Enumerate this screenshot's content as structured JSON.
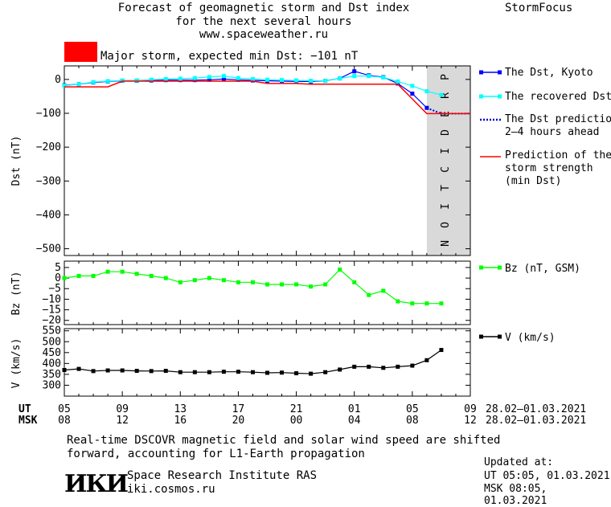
{
  "header": {
    "line1": "Forecast of geomagnetic storm and Dst index",
    "line2": "for the next several hours",
    "line3": "www.spaceweather.ru",
    "brand": "StormFocus"
  },
  "storm_banner": {
    "color": "#ff0000",
    "text": "Major storm, expected min Dst: −101 nT"
  },
  "prediction_label": "PREDICTION",
  "legend": {
    "dst_kyoto": "The Dst, Kyoto",
    "recovered": "The recovered Dst",
    "prediction_line1": "The Dst prediction",
    "prediction_line2": "2–4 hours ahead",
    "strength_line1": "Prediction of the",
    "strength_line2": "storm strength",
    "strength_line3": "(min Dst)",
    "bz": "Bz (nT, GSM)",
    "v": "V (km/s)"
  },
  "time_axis": {
    "ut_label": "UT",
    "msk_label": "MSK",
    "ut_ticks": [
      "05",
      "09",
      "13",
      "17",
      "21",
      "01",
      "05",
      "09"
    ],
    "msk_ticks": [
      "08",
      "12",
      "16",
      "20",
      "00",
      "04",
      "08",
      "12"
    ],
    "date_range_ut": "28.02–01.03.2021",
    "date_range_msk": "28.02–01.03.2021"
  },
  "footer": {
    "note1": "Real-time DSCOVR magnetic field and solar wind speed are shifted",
    "note2": "forward, accounting for L1-Earth propagation",
    "logo": "ИКИ",
    "institute": "Space Research Institute RAS",
    "url": "iki.cosmos.ru",
    "updated_label": "Updated at:",
    "updated_ut": "UT   05:05, 01.03.2021",
    "updated_msk": "MSK 08:05, 01.03.2021"
  },
  "chart_data": [
    {
      "type": "line",
      "ylabel": "Dst (nT)",
      "xlim": [
        5,
        33
      ],
      "ylim": [
        -520,
        40
      ],
      "yticks": [
        0,
        -100,
        -200,
        -300,
        -400,
        -500
      ],
      "prediction_region": [
        30,
        33
      ],
      "series": [
        {
          "name": "The Dst, Kyoto",
          "color": "#0000ff",
          "x": [
            5,
            6,
            7,
            8,
            9,
            10,
            11,
            12,
            13,
            14,
            15,
            16,
            17,
            18,
            19,
            20,
            21,
            22,
            23,
            24,
            25,
            26,
            27,
            28,
            29,
            30
          ],
          "y": [
            -17,
            -14,
            -9,
            -6,
            -4,
            -4,
            -3,
            -2,
            -2,
            -2,
            -1,
            1,
            -1,
            -3,
            -4,
            -5,
            -6,
            -6,
            -4,
            3,
            24,
            12,
            7,
            -12,
            -42,
            -84
          ]
        },
        {
          "name": "The recovered Dst",
          "color": "#00ffff",
          "x": [
            5,
            6,
            7,
            8,
            9,
            10,
            11,
            12,
            13,
            14,
            15,
            16,
            17,
            18,
            19,
            20,
            21,
            22,
            23,
            24,
            25,
            26,
            27,
            28,
            29,
            30,
            31
          ],
          "y": [
            -18,
            -14,
            -8,
            -5,
            -3,
            -3,
            -1,
            1,
            2,
            4,
            7,
            10,
            4,
            1,
            -1,
            -2,
            -3,
            -4,
            -4,
            3,
            10,
            10,
            6,
            -6,
            -19,
            -35,
            -46
          ]
        },
        {
          "name": "The Dst prediction 2–4 hours ahead",
          "color": "#0000cc",
          "x": [
            30,
            31,
            32,
            33
          ],
          "y": [
            -84,
            -101,
            -101,
            -101
          ]
        },
        {
          "name": "Prediction of the storm strength (min Dst)",
          "color": "#ff0000",
          "x": [
            5,
            8,
            9,
            13,
            14,
            18,
            19,
            21,
            22,
            28,
            30,
            33
          ],
          "y": [
            -22,
            -22,
            -5,
            -5,
            -5,
            -5,
            -12,
            -12,
            -14,
            -14,
            -101,
            -101
          ]
        }
      ]
    },
    {
      "type": "line",
      "ylabel": "Bz (nT)",
      "xlim": [
        5,
        33
      ],
      "ylim": [
        -22,
        8
      ],
      "yticks": [
        5,
        0,
        -5,
        -10,
        -15,
        -20
      ],
      "series": [
        {
          "name": "Bz (nT, GSM)",
          "color": "#00ff00",
          "x": [
            5,
            6,
            7,
            8,
            9,
            10,
            11,
            12,
            13,
            14,
            15,
            16,
            17,
            18,
            19,
            20,
            21,
            22,
            23,
            24,
            25,
            26,
            27,
            28,
            29,
            30,
            31
          ],
          "y": [
            0,
            1,
            1,
            3,
            3,
            2,
            1,
            0,
            -2,
            -1,
            0,
            -1,
            -2,
            -2,
            -3,
            -3,
            -3,
            -4,
            -3,
            4,
            -2,
            -8,
            -6,
            -11,
            -12,
            -12,
            -12
          ]
        }
      ]
    },
    {
      "type": "line",
      "ylabel": "V (km/s)",
      "xlim": [
        5,
        33
      ],
      "ylim": [
        250,
        560
      ],
      "yticks": [
        300,
        350,
        400,
        450,
        500,
        550
      ],
      "series": [
        {
          "name": "V (km/s)",
          "color": "#000000",
          "x": [
            5,
            6,
            7,
            8,
            9,
            10,
            11,
            12,
            13,
            14,
            15,
            16,
            17,
            18,
            19,
            20,
            21,
            22,
            23,
            24,
            25,
            26,
            27,
            28,
            29,
            30,
            31
          ],
          "y": [
            370,
            375,
            365,
            368,
            368,
            366,
            365,
            366,
            360,
            360,
            360,
            362,
            362,
            360,
            357,
            358,
            355,
            353,
            360,
            372,
            385,
            385,
            380,
            385,
            390,
            415,
            462
          ]
        }
      ]
    }
  ]
}
